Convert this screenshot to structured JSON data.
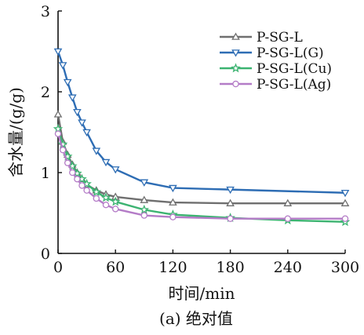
{
  "chart_data": {
    "type": "line",
    "title": "",
    "caption": "(a) 绝对值",
    "xlabel": "时间/min",
    "ylabel": "含水量/(g/g)",
    "xlim": [
      0,
      300
    ],
    "ylim": [
      0,
      3
    ],
    "xticks": [
      0,
      60,
      120,
      180,
      240,
      300
    ],
    "yticks": [
      0,
      1,
      2,
      3
    ],
    "legend_position": "top-right",
    "grid": false,
    "series": [
      {
        "name": "P-SG-L",
        "color": "#6f6f6f",
        "marker": "triangle-up",
        "x": [
          0,
          5,
          10,
          15,
          20,
          25,
          30,
          40,
          50,
          60,
          90,
          120,
          180,
          240,
          300
        ],
        "y": [
          1.72,
          1.38,
          1.22,
          1.1,
          1.0,
          0.92,
          0.85,
          0.78,
          0.73,
          0.7,
          0.66,
          0.63,
          0.62,
          0.62,
          0.62
        ]
      },
      {
        "name": "P-SG-L(G)",
        "color": "#2e6db4",
        "marker": "triangle-down",
        "x": [
          0,
          5,
          10,
          15,
          20,
          25,
          30,
          40,
          50,
          60,
          90,
          120,
          180,
          300
        ],
        "y": [
          2.5,
          2.33,
          2.12,
          1.93,
          1.75,
          1.62,
          1.5,
          1.27,
          1.13,
          1.04,
          0.88,
          0.81,
          0.79,
          0.75
        ]
      },
      {
        "name": "P-SG-L(Cu)",
        "color": "#3cb371",
        "marker": "star",
        "x": [
          0,
          5,
          10,
          15,
          20,
          25,
          30,
          40,
          50,
          60,
          90,
          120,
          180,
          240,
          300
        ],
        "y": [
          1.54,
          1.35,
          1.2,
          1.08,
          0.99,
          0.92,
          0.86,
          0.76,
          0.69,
          0.64,
          0.54,
          0.48,
          0.44,
          0.41,
          0.39
        ]
      },
      {
        "name": "P-SG-L(Ag)",
        "color": "#b47cc7",
        "marker": "circle",
        "x": [
          0,
          5,
          10,
          15,
          20,
          25,
          30,
          40,
          50,
          60,
          90,
          120,
          180,
          240,
          300
        ],
        "y": [
          1.48,
          1.28,
          1.12,
          1.0,
          0.92,
          0.84,
          0.78,
          0.68,
          0.6,
          0.55,
          0.47,
          0.45,
          0.43,
          0.43,
          0.43
        ]
      }
    ]
  }
}
